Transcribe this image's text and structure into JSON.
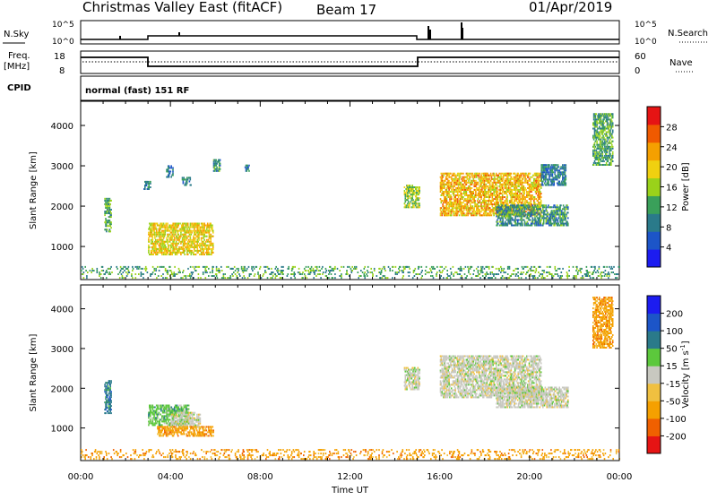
{
  "header": {
    "radar": "Christmas Valley East (fitACF)",
    "beam": "Beam 17",
    "date": "01/Apr/2019",
    "mode": "normal (fast) 151 RF"
  },
  "strip_labels": {
    "nsky": "N.Sky",
    "nsearch": "N.Search",
    "freq": "Freq.",
    "freq_unit": "[MHz]",
    "nave": "Nave",
    "cpid": "CPID",
    "nsky_ticks": [
      "10^5",
      "10^0"
    ],
    "nsearch_ticks": [
      "10^5",
      "10^0"
    ],
    "freq_ticks": [
      "18",
      "8"
    ],
    "nave_ticks": [
      "60",
      "0"
    ]
  },
  "chart_data": [
    {
      "type": "heatmap",
      "panel": "power",
      "ylabel": "Slant Range [km]",
      "colorbar_label": "Power [dB]",
      "xlim": [
        0,
        24
      ],
      "ylim": [
        180,
        4600
      ],
      "yticks": [
        "1000",
        "2000",
        "3000",
        "4000"
      ],
      "colorbar_ticks": [
        "4",
        "8",
        "12",
        "16",
        "20",
        "24",
        "28"
      ],
      "colors": [
        "#1c1cf0",
        "#1c55c8",
        "#2a7a8a",
        "#3aa05a",
        "#9ad21a",
        "#f0d010",
        "#f5a000",
        "#f05a00",
        "#e61414"
      ],
      "echo_regions": [
        {
          "t0": 1.05,
          "t1": 1.35,
          "r0": 1350,
          "r1": 2200,
          "level": 12
        },
        {
          "t0": 3.0,
          "t1": 5.9,
          "r0": 780,
          "r1": 1550,
          "level": 20
        },
        {
          "t0": 2.8,
          "t1": 3.1,
          "r0": 2400,
          "r1": 2600,
          "level": 8
        },
        {
          "t0": 3.8,
          "t1": 4.1,
          "r0": 2700,
          "r1": 3000,
          "level": 8
        },
        {
          "t0": 4.5,
          "t1": 4.9,
          "r0": 2500,
          "r1": 2700,
          "level": 8
        },
        {
          "t0": 5.9,
          "t1": 6.2,
          "r0": 2850,
          "r1": 3150,
          "level": 10
        },
        {
          "t0": 7.3,
          "t1": 7.5,
          "r0": 2850,
          "r1": 3000,
          "level": 8
        },
        {
          "t0": 14.4,
          "t1": 15.1,
          "r0": 1950,
          "r1": 2500,
          "level": 16
        },
        {
          "t0": 16.0,
          "t1": 20.5,
          "r0": 1750,
          "r1": 2800,
          "level": 22
        },
        {
          "t0": 18.5,
          "t1": 21.7,
          "r0": 1500,
          "r1": 2000,
          "level": 10
        },
        {
          "t0": 20.5,
          "t1": 21.6,
          "r0": 2500,
          "r1": 3000,
          "level": 8
        },
        {
          "t0": 22.8,
          "t1": 23.7,
          "r0": 3000,
          "r1": 4300,
          "level": 12
        },
        {
          "t0": 0.0,
          "t1": 24.0,
          "r0": 200,
          "r1": 500,
          "level": 12
        }
      ]
    },
    {
      "type": "heatmap",
      "panel": "velocity",
      "ylabel": "Slant Range [km]",
      "colorbar_label": "Velocity [m s",
      "colorbar_label_sup": "-1",
      "colorbar_label_end": "]",
      "xlabel": "Time UT",
      "xlim": [
        0,
        24
      ],
      "ylim": [
        180,
        4600
      ],
      "xticks": [
        "00:00",
        "04:00",
        "08:00",
        "12:00",
        "16:00",
        "20:00",
        "00:00"
      ],
      "yticks": [
        "1000",
        "2000",
        "3000",
        "4000"
      ],
      "colorbar_ticks": [
        "200",
        "100",
        "50",
        "15",
        "-15",
        "-50",
        "-100",
        "-200"
      ],
      "colors": [
        "#1c1cf0",
        "#1c55c8",
        "#2a7a8a",
        "#5cc83c",
        "#c8c8c0",
        "#f0c040",
        "#f5a000",
        "#f06000",
        "#e61414"
      ],
      "echo_regions": [
        {
          "t0": 1.05,
          "t1": 1.35,
          "r0": 1350,
          "r1": 2200,
          "level": 50
        },
        {
          "t0": 3.0,
          "t1": 4.8,
          "r0": 1050,
          "r1": 1550,
          "level": 30
        },
        {
          "t0": 4.0,
          "t1": 5.3,
          "r0": 1000,
          "r1": 1400,
          "level": 0
        },
        {
          "t0": 3.4,
          "t1": 5.9,
          "r0": 780,
          "r1": 1050,
          "level": -50
        },
        {
          "t0": 14.4,
          "t1": 15.1,
          "r0": 1950,
          "r1": 2500,
          "level": 0
        },
        {
          "t0": 16.0,
          "t1": 20.5,
          "r0": 1750,
          "r1": 2800,
          "level": 0
        },
        {
          "t0": 18.5,
          "t1": 21.7,
          "r0": 1500,
          "r1": 2000,
          "level": 0
        },
        {
          "t0": 22.8,
          "t1": 23.7,
          "r0": 3000,
          "r1": 4300,
          "level": -50
        },
        {
          "t0": 0.0,
          "t1": 24.0,
          "r0": 200,
          "r1": 450,
          "level": -40
        }
      ]
    }
  ]
}
